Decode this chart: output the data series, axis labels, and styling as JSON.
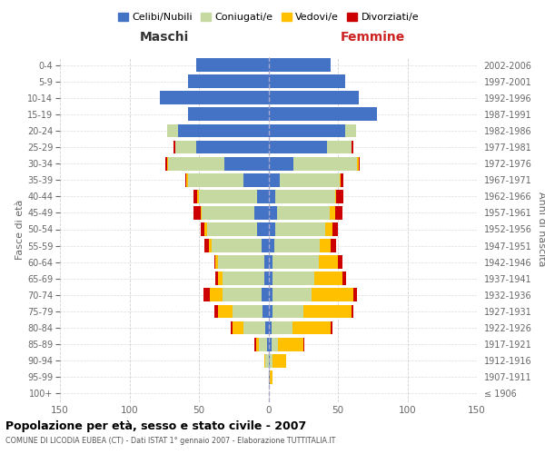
{
  "age_groups": [
    "100+",
    "95-99",
    "90-94",
    "85-89",
    "80-84",
    "75-79",
    "70-74",
    "65-69",
    "60-64",
    "55-59",
    "50-54",
    "45-49",
    "40-44",
    "35-39",
    "30-34",
    "25-29",
    "20-24",
    "15-19",
    "10-14",
    "5-9",
    "0-4"
  ],
  "birth_years": [
    "≤ 1906",
    "1907-1911",
    "1912-1916",
    "1917-1921",
    "1922-1926",
    "1927-1931",
    "1932-1936",
    "1937-1941",
    "1942-1946",
    "1947-1951",
    "1952-1956",
    "1957-1961",
    "1962-1966",
    "1967-1971",
    "1972-1976",
    "1977-1981",
    "1982-1986",
    "1987-1991",
    "1992-1996",
    "1997-2001",
    "2002-2006"
  ],
  "maschi": {
    "celibi": [
      0,
      0,
      0,
      1,
      2,
      4,
      5,
      3,
      3,
      5,
      8,
      10,
      8,
      18,
      32,
      52,
      65,
      58,
      78,
      58,
      52
    ],
    "coniugati": [
      0,
      0,
      2,
      6,
      16,
      22,
      28,
      30,
      33,
      36,
      36,
      38,
      42,
      40,
      40,
      15,
      8,
      0,
      0,
      0,
      0
    ],
    "vedovi": [
      0,
      0,
      1,
      2,
      8,
      10,
      9,
      3,
      2,
      2,
      2,
      1,
      1,
      1,
      1,
      0,
      0,
      0,
      0,
      0,
      0
    ],
    "divorziati": [
      0,
      0,
      0,
      1,
      1,
      3,
      5,
      2,
      1,
      3,
      3,
      5,
      3,
      1,
      1,
      1,
      0,
      0,
      0,
      0,
      0
    ]
  },
  "femmine": {
    "nubili": [
      0,
      1,
      1,
      2,
      2,
      3,
      3,
      3,
      3,
      4,
      5,
      6,
      5,
      8,
      18,
      42,
      55,
      78,
      65,
      55,
      45
    ],
    "coniugate": [
      0,
      0,
      2,
      5,
      15,
      22,
      28,
      30,
      33,
      33,
      36,
      38,
      43,
      43,
      46,
      18,
      8,
      0,
      0,
      0,
      0
    ],
    "vedove": [
      0,
      2,
      10,
      18,
      28,
      35,
      30,
      20,
      14,
      8,
      5,
      4,
      1,
      1,
      1,
      0,
      0,
      0,
      0,
      0,
      0
    ],
    "divorziate": [
      0,
      0,
      0,
      1,
      1,
      1,
      3,
      3,
      3,
      4,
      4,
      5,
      5,
      2,
      1,
      1,
      0,
      0,
      0,
      0,
      0
    ]
  },
  "colors": {
    "celibi": "#4472c4",
    "coniugati": "#c5d9a0",
    "vedovi": "#ffc000",
    "divorziati": "#cc0000"
  },
  "legend_labels": [
    "Celibi/Nubili",
    "Coniugati/e",
    "Vedovi/e",
    "Divorziati/e"
  ],
  "title": "Popolazione per età, sesso e stato civile - 2007",
  "subtitle": "COMUNE DI LICODIA EUBEA (CT) - Dati ISTAT 1° gennaio 2007 - Elaborazione TUTTITALIA.IT",
  "xlabel_left": "Maschi",
  "xlabel_right": "Femmine",
  "ylabel_left": "Fasce di età",
  "ylabel_right": "Anni di nascita",
  "xlim": 150,
  "background_color": "#ffffff",
  "grid_color": "#cccccc"
}
